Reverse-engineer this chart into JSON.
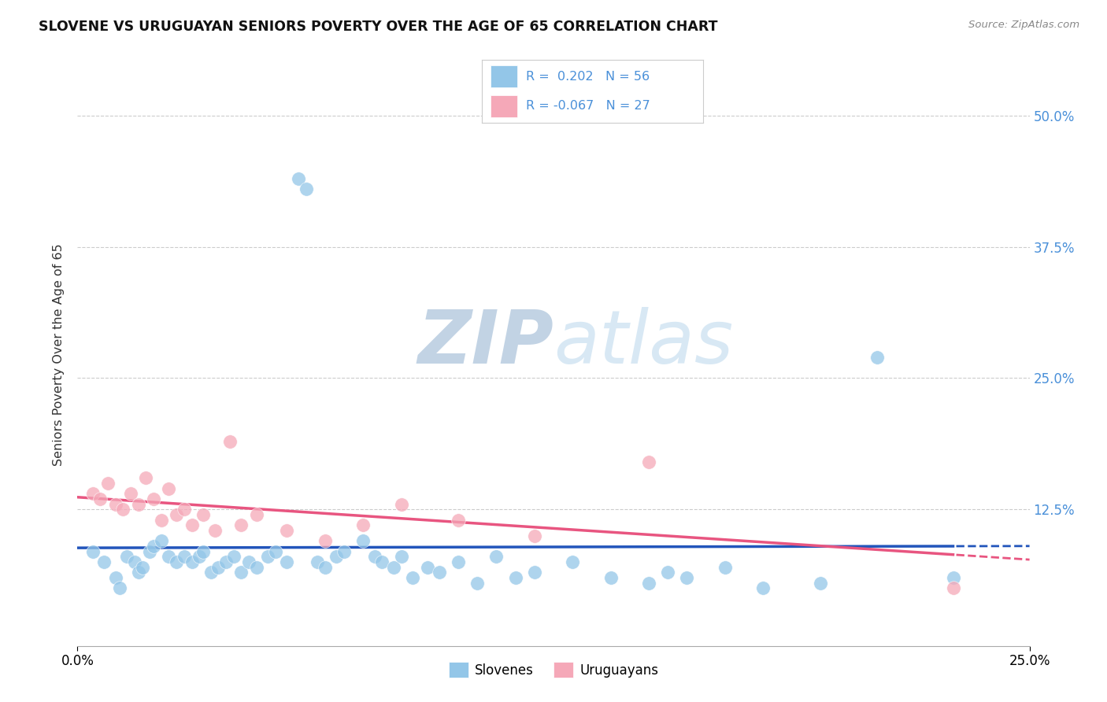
{
  "title": "SLOVENE VS URUGUAYAN SENIORS POVERTY OVER THE AGE OF 65 CORRELATION CHART",
  "source": "Source: ZipAtlas.com",
  "ylabel": "Seniors Poverty Over the Age of 65",
  "ytick_labels": [
    "",
    "12.5%",
    "25.0%",
    "37.5%",
    "50.0%"
  ],
  "ytick_values": [
    0,
    0.125,
    0.25,
    0.375,
    0.5
  ],
  "xlim": [
    0.0,
    0.25
  ],
  "ylim": [
    -0.005,
    0.55
  ],
  "legend_slovenes": "Slovenes",
  "legend_uruguayans": "Uruguayans",
  "R_slovenes": "0.202",
  "N_slovenes": "56",
  "R_uruguayans": "-0.067",
  "N_uruguayans": "27",
  "color_slovenes": "#93c6e8",
  "color_uruguayans": "#f5a8b8",
  "color_blue_text": "#4a90d9",
  "trendline_slovenes_color": "#2255bb",
  "trendline_uruguayans_color": "#e85580",
  "watermark_color": "#d0dff0",
  "background_color": "#ffffff",
  "grid_color": "#cccccc",
  "slovenes_x": [
    0.004,
    0.007,
    0.01,
    0.011,
    0.013,
    0.015,
    0.016,
    0.017,
    0.019,
    0.02,
    0.022,
    0.024,
    0.026,
    0.028,
    0.03,
    0.032,
    0.033,
    0.035,
    0.037,
    0.039,
    0.041,
    0.043,
    0.045,
    0.047,
    0.05,
    0.052,
    0.055,
    0.058,
    0.06,
    0.063,
    0.065,
    0.068,
    0.07,
    0.075,
    0.078,
    0.08,
    0.083,
    0.085,
    0.088,
    0.092,
    0.095,
    0.1,
    0.105,
    0.11,
    0.115,
    0.12,
    0.13,
    0.14,
    0.15,
    0.155,
    0.16,
    0.17,
    0.18,
    0.195,
    0.21,
    0.23
  ],
  "slovenes_y": [
    0.085,
    0.075,
    0.06,
    0.05,
    0.08,
    0.075,
    0.065,
    0.07,
    0.085,
    0.09,
    0.095,
    0.08,
    0.075,
    0.08,
    0.075,
    0.08,
    0.085,
    0.065,
    0.07,
    0.075,
    0.08,
    0.065,
    0.075,
    0.07,
    0.08,
    0.085,
    0.075,
    0.44,
    0.43,
    0.075,
    0.07,
    0.08,
    0.085,
    0.095,
    0.08,
    0.075,
    0.07,
    0.08,
    0.06,
    0.07,
    0.065,
    0.075,
    0.055,
    0.08,
    0.06,
    0.065,
    0.075,
    0.06,
    0.055,
    0.065,
    0.06,
    0.07,
    0.05,
    0.055,
    0.27,
    0.06
  ],
  "uruguayans_x": [
    0.004,
    0.006,
    0.008,
    0.01,
    0.012,
    0.014,
    0.016,
    0.018,
    0.02,
    0.022,
    0.024,
    0.026,
    0.028,
    0.03,
    0.033,
    0.036,
    0.04,
    0.043,
    0.047,
    0.055,
    0.065,
    0.075,
    0.085,
    0.1,
    0.12,
    0.15,
    0.23
  ],
  "uruguayans_y": [
    0.14,
    0.135,
    0.15,
    0.13,
    0.125,
    0.14,
    0.13,
    0.155,
    0.135,
    0.115,
    0.145,
    0.12,
    0.125,
    0.11,
    0.12,
    0.105,
    0.19,
    0.11,
    0.12,
    0.105,
    0.095,
    0.11,
    0.13,
    0.115,
    0.1,
    0.17,
    0.05
  ]
}
